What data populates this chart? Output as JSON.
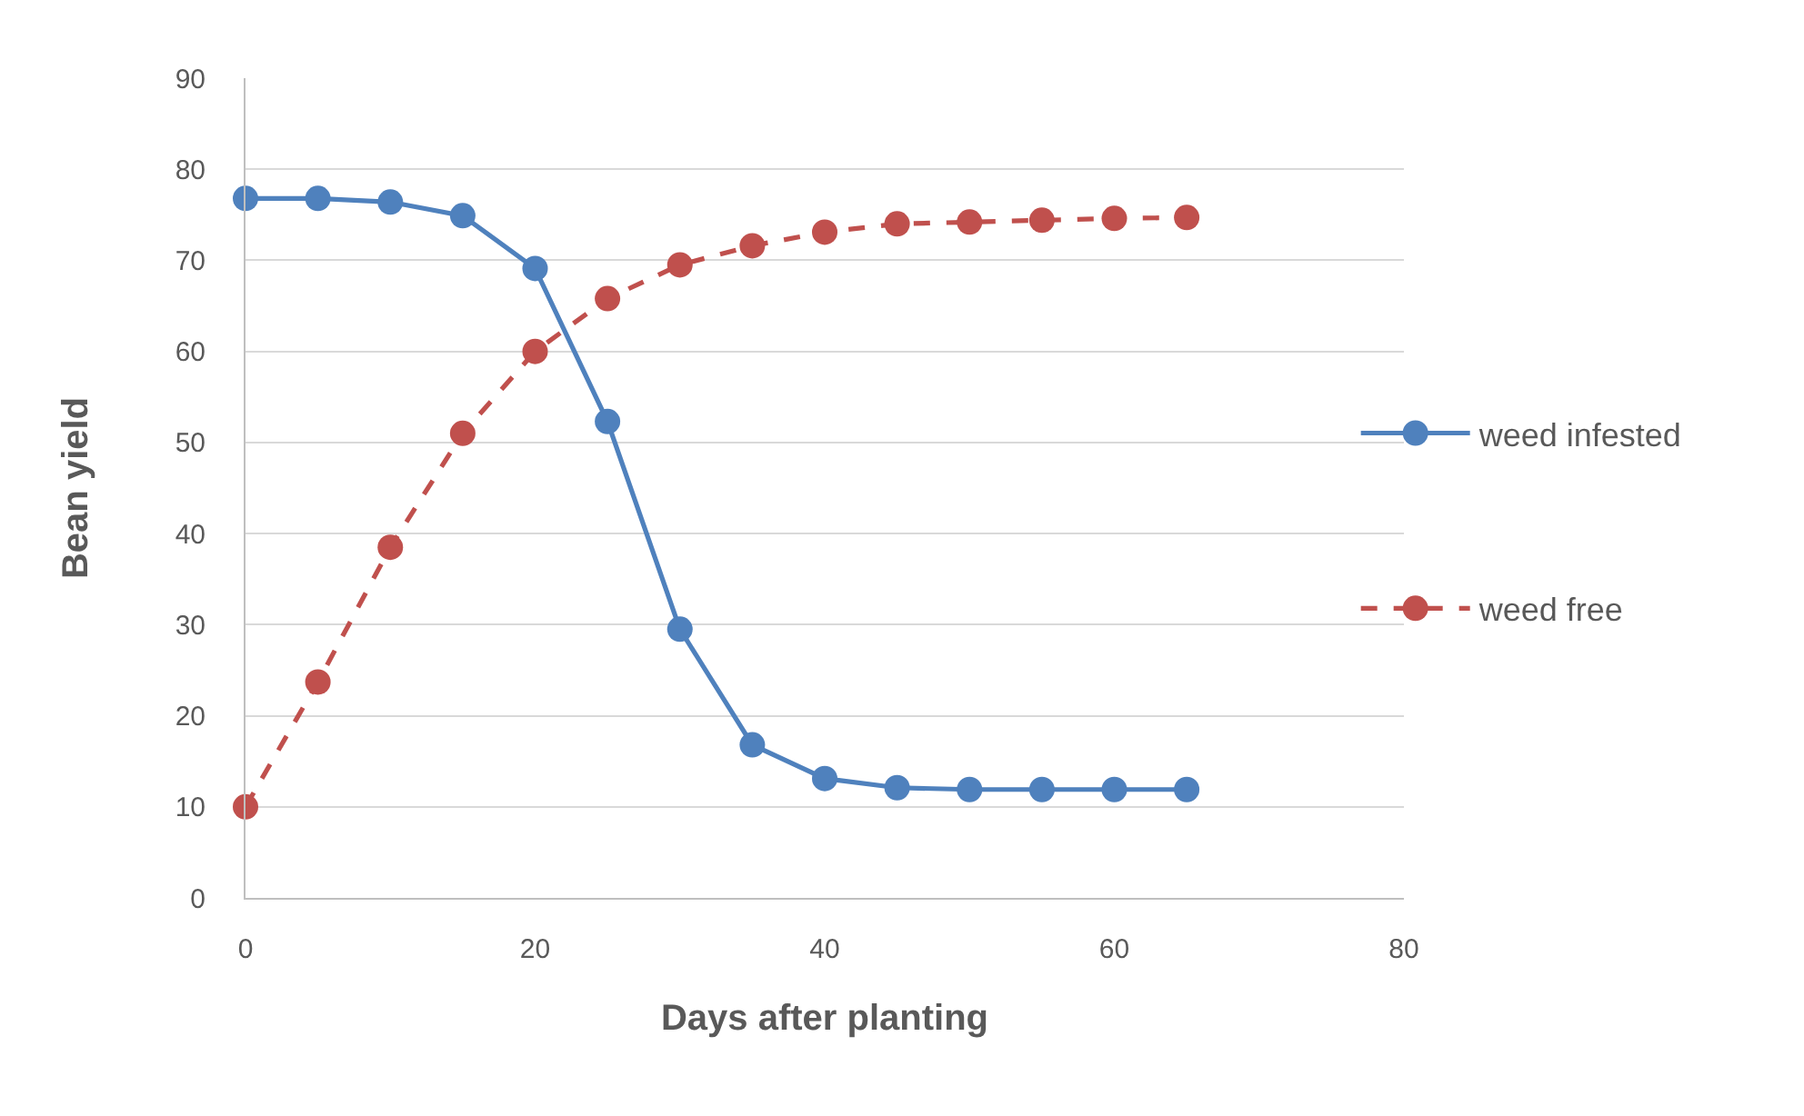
{
  "chart_data": {
    "type": "line",
    "xlabel": "Days after planting",
    "ylabel": "Bean yield",
    "x": [
      0,
      5,
      10,
      15,
      20,
      25,
      30,
      35,
      40,
      45,
      50,
      55,
      60,
      65
    ],
    "series": [
      {
        "name": "weed infested",
        "color": "#4f81bd",
        "line_style": "solid",
        "values": [
          76.8,
          76.8,
          76.4,
          74.9,
          69.1,
          52.3,
          29.5,
          16.8,
          13.1,
          12.1,
          11.9,
          11.9,
          11.9,
          11.9
        ]
      },
      {
        "name": "weed free",
        "color": "#c0504d",
        "line_style": "dashed",
        "values": [
          10,
          23.7,
          38.5,
          51,
          60,
          65.8,
          69.5,
          71.6,
          73.1,
          74,
          74.2,
          74.4,
          74.6,
          74.7
        ]
      }
    ],
    "xlim": [
      0,
      80
    ],
    "xticks": [
      0,
      20,
      40,
      60,
      80
    ],
    "ylim": [
      0,
      90
    ],
    "yticks": [
      0,
      10,
      20,
      30,
      40,
      50,
      60,
      70,
      80,
      90
    ],
    "grid": "y",
    "legend": "right",
    "marker": "circle"
  }
}
